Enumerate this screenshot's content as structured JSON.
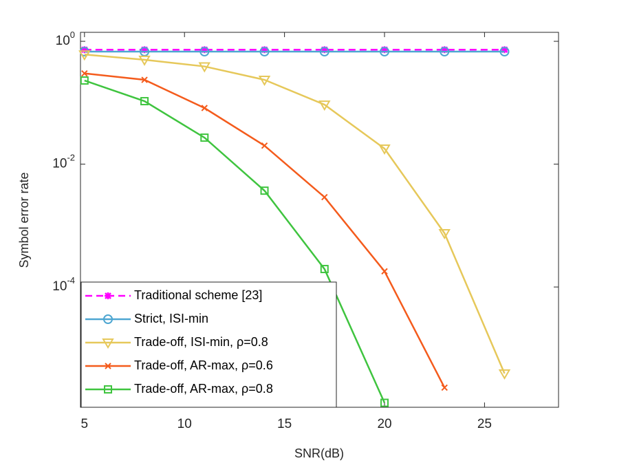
{
  "chart_data": {
    "type": "line",
    "xlabel": "SNR(dB)",
    "ylabel": "Symbol error rate",
    "x": [
      5,
      8,
      11,
      14,
      17,
      20,
      23,
      26
    ],
    "xlim": [
      4.8,
      28.7
    ],
    "xticks": [
      5,
      10,
      15,
      20,
      25
    ],
    "ylim": [
      1.1e-06,
      1.4
    ],
    "yscale": "log",
    "yticks": [
      {
        "value": 0.0001,
        "label": "10^-4"
      },
      {
        "value": 0.01,
        "label": "10^-2"
      },
      {
        "value": 1,
        "label": "10^0"
      }
    ],
    "legend": "lower left",
    "series": [
      {
        "name": "Traditional scheme [23]",
        "color": "#ff00ff",
        "dash": true,
        "marker": "asterisk",
        "values": [
          0.73,
          0.73,
          0.73,
          0.73,
          0.73,
          0.73,
          0.73,
          0.73
        ]
      },
      {
        "name": "Strict, ISI-min",
        "color": "#4da6d1",
        "dash": false,
        "marker": "circle",
        "values": [
          0.68,
          0.68,
          0.68,
          0.68,
          0.68,
          0.68,
          0.68,
          0.68
        ]
      },
      {
        "name": "Trade-off, ISI-min, ρ=0.8",
        "color": "#e6c85a",
        "dash": false,
        "marker": "triangle-down",
        "values": [
          0.61,
          0.5,
          0.39,
          0.236,
          0.093,
          0.0179,
          0.00075,
          3.9e-06
        ]
      },
      {
        "name": "Trade-off, AR-max, ρ=0.6",
        "color": "#f45b1c",
        "dash": false,
        "marker": "x",
        "values": [
          0.3,
          0.236,
          0.082,
          0.02,
          0.0029,
          0.00018,
          2.3e-06,
          null
        ]
      },
      {
        "name": "Trade-off, AR-max, ρ=0.8",
        "color": "#3fc43f",
        "dash": false,
        "marker": "square",
        "values": [
          0.23,
          0.106,
          0.027,
          0.0037,
          0.000196,
          1.3e-06,
          null,
          null
        ]
      }
    ]
  }
}
